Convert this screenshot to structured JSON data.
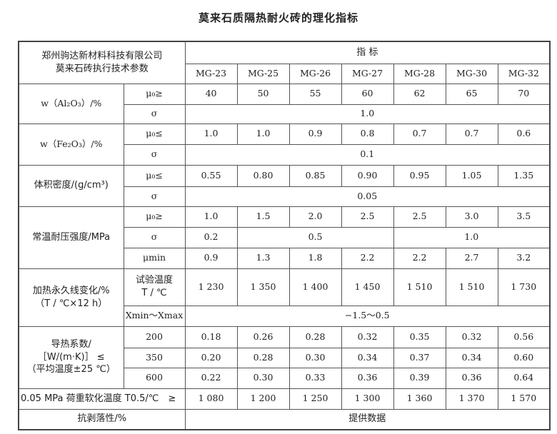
{
  "title": "莫来石质隔热耐火砖的理化指标",
  "header": {
    "company": "郑州驹达新材料科技有限公司",
    "subtitle": "莫来石砖执行技术参数",
    "indicator": "指 标",
    "grades": [
      "MG-23",
      "MG-25",
      "MG-26",
      "MG-27",
      "MG-28",
      "MG-30",
      "MG-32"
    ]
  },
  "rows": {
    "al2o3": {
      "label": "w（Al₂O₃）/%",
      "mu_label": "μ₀≥",
      "mu": [
        "40",
        "50",
        "55",
        "60",
        "62",
        "65",
        "70"
      ],
      "sigma_label": "σ",
      "sigma": "1.0"
    },
    "fe2o3": {
      "label": "w（Fe₂O₃）/%",
      "mu_label": "μ₀≤",
      "mu": [
        "1.0",
        "1.0",
        "0.9",
        "0.8",
        "0.7",
        "0.7",
        "0.6"
      ],
      "sigma_label": "σ",
      "sigma": "0.1"
    },
    "density": {
      "label": "体积密度/(g/cm³)",
      "mu_label": "μ₀≤",
      "mu": [
        "0.55",
        "0.80",
        "0.85",
        "0.90",
        "0.95",
        "1.05",
        "1.35"
      ],
      "sigma_label": "σ",
      "sigma": "0.05"
    },
    "strength": {
      "label": "常温耐压强度/MPa",
      "mu_label": "μ₀≥",
      "mu": [
        "1.0",
        "1.5",
        "2.0",
        "2.5",
        "2.5",
        "3.0",
        "3.5"
      ],
      "sigma_label": "σ",
      "sigma": [
        "0.2",
        "0.5",
        "1.0"
      ],
      "min_label": "μmin",
      "min": [
        "0.9",
        "1.3",
        "1.8",
        "2.2",
        "2.2",
        "2.7",
        "3.2"
      ]
    },
    "linear": {
      "label1": "加热永久线变化/%",
      "label2": "（T / ℃×12 h）",
      "temp_label1": "试验温度",
      "temp_label2": "T / ℃",
      "temp": [
        "1 230",
        "1 350",
        "1 400",
        "1 450",
        "1 510",
        "1 510",
        "1 730"
      ],
      "range_label": "Xmin～Xmax",
      "range": "−1.5～0.5"
    },
    "thermal": {
      "label1": "导热系数/",
      "label2": "［W/(m·K)］ ≤",
      "label3": "（平均温度±25 ℃）",
      "levels": [
        {
          "temp": "200",
          "values": [
            "0.18",
            "0.26",
            "0.28",
            "0.32",
            "0.35",
            "0.32",
            "0.56"
          ]
        },
        {
          "temp": "350",
          "values": [
            "0.20",
            "0.28",
            "0.30",
            "0.34",
            "0.37",
            "0.34",
            "0.60"
          ]
        },
        {
          "temp": "600",
          "values": [
            "0.22",
            "0.30",
            "0.33",
            "0.36",
            "0.39",
            "0.36",
            "0.64"
          ]
        }
      ]
    },
    "rul": {
      "label": "0.05 MPa 荷重软化温度 T0.5/℃　≥",
      "values": [
        "1 080",
        "1 200",
        "1 250",
        "1 300",
        "1 360",
        "1 370",
        "1 570"
      ]
    },
    "spalling": {
      "label": "抗剥落性/%",
      "value": "提供数据"
    }
  }
}
